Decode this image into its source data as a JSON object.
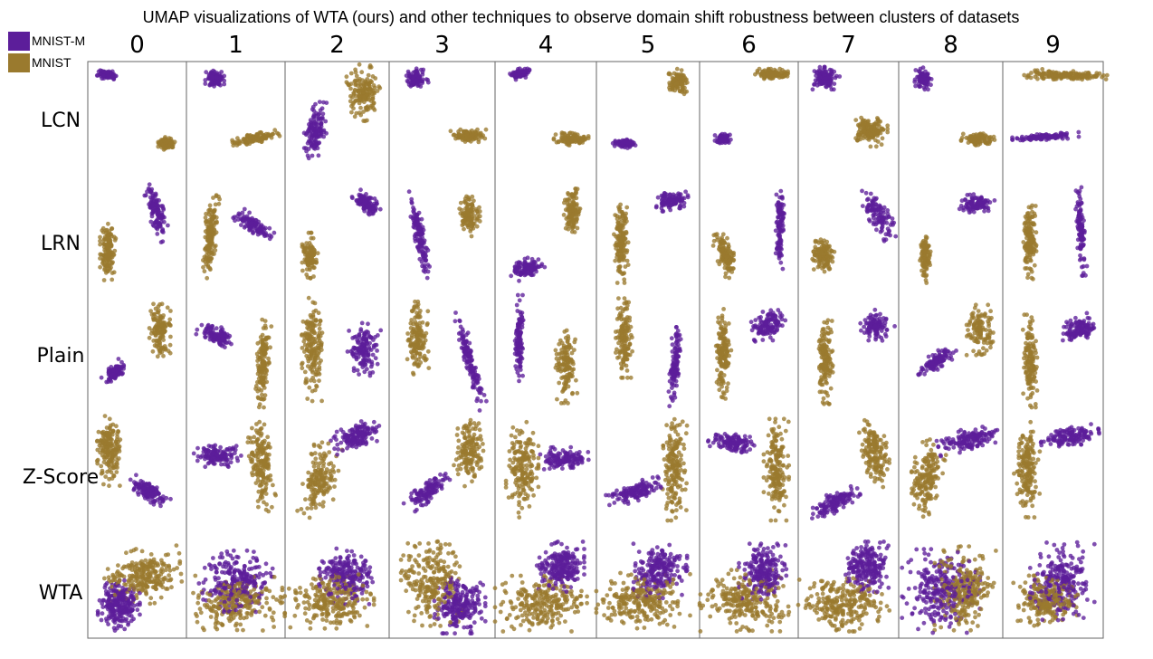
{
  "chart_data": {
    "type": "scatter",
    "title": "UMAP visualizations of WTA (ours) and other techniques to observe domain shift robustness between clusters of datasets",
    "columns": [
      "0",
      "1",
      "2",
      "3",
      "4",
      "5",
      "6",
      "7",
      "8",
      "9"
    ],
    "rows": [
      "LCN",
      "LRN",
      "Plain",
      "Z-Score",
      "WTA"
    ],
    "legend": {
      "placement": "top-left",
      "entries": [
        {
          "name": "MNIST-M",
          "color": "#5c1e9a"
        },
        {
          "name": "MNIST",
          "color": "#9a7a2e"
        }
      ]
    },
    "grid": false,
    "axes_visible": false,
    "panels": {
      "LCN": {
        "0": {
          "MNIST-M": {
            "cx": 0.18,
            "cy": 0.09,
            "w": 0.2,
            "h": 0.08,
            "rot": 10,
            "n": 90
          },
          "MNIST": {
            "cx": 0.82,
            "cy": 0.72,
            "w": 0.18,
            "h": 0.1,
            "rot": 0,
            "n": 90
          }
        },
        "1": {
          "MNIST-M": {
            "cx": 0.27,
            "cy": 0.12,
            "w": 0.18,
            "h": 0.15,
            "rot": 0,
            "n": 90
          },
          "MNIST": {
            "cx": 0.72,
            "cy": 0.67,
            "w": 0.45,
            "h": 0.08,
            "rot": -12,
            "n": 110
          }
        },
        "2": {
          "MNIST-M": {
            "cx": 0.28,
            "cy": 0.6,
            "w": 0.2,
            "h": 0.46,
            "rot": 8,
            "n": 130
          },
          "MNIST": {
            "cx": 0.77,
            "cy": 0.25,
            "w": 0.3,
            "h": 0.46,
            "rot": 0,
            "n": 160
          }
        },
        "3": {
          "MNIST-M": {
            "cx": 0.23,
            "cy": 0.12,
            "w": 0.2,
            "h": 0.15,
            "rot": -15,
            "n": 90
          },
          "MNIST": {
            "cx": 0.77,
            "cy": 0.65,
            "w": 0.32,
            "h": 0.1,
            "rot": 0,
            "n": 100
          }
        },
        "4": {
          "MNIST-M": {
            "cx": 0.22,
            "cy": 0.08,
            "w": 0.2,
            "h": 0.08,
            "rot": -15,
            "n": 80
          },
          "MNIST": {
            "cx": 0.77,
            "cy": 0.68,
            "w": 0.32,
            "h": 0.1,
            "rot": 0,
            "n": 100
          }
        },
        "5": {
          "MNIST-M": {
            "cx": 0.25,
            "cy": 0.72,
            "w": 0.22,
            "h": 0.08,
            "rot": 0,
            "n": 80
          },
          "MNIST": {
            "cx": 0.82,
            "cy": 0.15,
            "w": 0.18,
            "h": 0.2,
            "rot": 0,
            "n": 100
          }
        },
        "6": {
          "MNIST-M": {
            "cx": 0.22,
            "cy": 0.68,
            "w": 0.16,
            "h": 0.08,
            "rot": 0,
            "n": 80
          },
          "MNIST": {
            "cx": 0.75,
            "cy": 0.08,
            "w": 0.35,
            "h": 0.08,
            "rot": 0,
            "n": 110
          }
        },
        "7": {
          "MNIST-M": {
            "cx": 0.25,
            "cy": 0.12,
            "w": 0.28,
            "h": 0.18,
            "rot": 0,
            "n": 110
          },
          "MNIST": {
            "cx": 0.73,
            "cy": 0.6,
            "w": 0.33,
            "h": 0.26,
            "rot": 0,
            "n": 150
          }
        },
        "8": {
          "MNIST-M": {
            "cx": 0.22,
            "cy": 0.12,
            "w": 0.16,
            "h": 0.18,
            "rot": 0,
            "n": 90
          },
          "MNIST": {
            "cx": 0.78,
            "cy": 0.68,
            "w": 0.3,
            "h": 0.1,
            "rot": 0,
            "n": 100
          }
        },
        "9": {
          "MNIST-M": {
            "cx": 0.42,
            "cy": 0.66,
            "w": 0.62,
            "h": 0.05,
            "rot": -3,
            "n": 110
          },
          "MNIST": {
            "cx": 0.62,
            "cy": 0.09,
            "w": 0.8,
            "h": 0.08,
            "rot": 2,
            "n": 170
          }
        }
      },
      "LRN": {
        "0": {
          "MNIST-M": {
            "cx": 0.7,
            "cy": 0.28,
            "w": 0.16,
            "h": 0.52,
            "rot": -15,
            "n": 120
          },
          "MNIST": {
            "cx": 0.18,
            "cy": 0.65,
            "w": 0.15,
            "h": 0.45,
            "rot": 0,
            "n": 140
          }
        },
        "1": {
          "MNIST-M": {
            "cx": 0.7,
            "cy": 0.4,
            "w": 0.4,
            "h": 0.12,
            "rot": 35,
            "n": 110
          },
          "MNIST": {
            "cx": 0.22,
            "cy": 0.5,
            "w": 0.12,
            "h": 0.72,
            "rot": 5,
            "n": 150
          }
        },
        "2": {
          "MNIST-M": {
            "cx": 0.8,
            "cy": 0.2,
            "w": 0.28,
            "h": 0.14,
            "rot": 40,
            "n": 100
          },
          "MNIST": {
            "cx": 0.22,
            "cy": 0.68,
            "w": 0.14,
            "h": 0.36,
            "rot": 0,
            "n": 110
          }
        },
        "3": {
          "MNIST-M": {
            "cx": 0.27,
            "cy": 0.5,
            "w": 0.1,
            "h": 0.72,
            "rot": -12,
            "n": 130
          },
          "MNIST": {
            "cx": 0.78,
            "cy": 0.32,
            "w": 0.18,
            "h": 0.32,
            "rot": 0,
            "n": 110
          }
        },
        "4": {
          "MNIST-M": {
            "cx": 0.28,
            "cy": 0.8,
            "w": 0.35,
            "h": 0.15,
            "rot": -20,
            "n": 110
          },
          "MNIST": {
            "cx": 0.78,
            "cy": 0.28,
            "w": 0.15,
            "h": 0.4,
            "rot": 0,
            "n": 120
          }
        },
        "5": {
          "MNIST-M": {
            "cx": 0.75,
            "cy": 0.18,
            "w": 0.3,
            "h": 0.14,
            "rot": -10,
            "n": 100
          },
          "MNIST": {
            "cx": 0.22,
            "cy": 0.55,
            "w": 0.13,
            "h": 0.66,
            "rot": 0,
            "n": 150
          }
        },
        "6": {
          "MNIST-M": {
            "cx": 0.84,
            "cy": 0.4,
            "w": 0.08,
            "h": 0.7,
            "rot": 0,
            "n": 110
          },
          "MNIST": {
            "cx": 0.24,
            "cy": 0.68,
            "w": 0.17,
            "h": 0.36,
            "rot": -15,
            "n": 120
          }
        },
        "7": {
          "MNIST-M": {
            "cx": 0.82,
            "cy": 0.3,
            "w": 0.2,
            "h": 0.44,
            "rot": -25,
            "n": 110
          },
          "MNIST": {
            "cx": 0.24,
            "cy": 0.68,
            "w": 0.22,
            "h": 0.3,
            "rot": 0,
            "n": 120
          }
        },
        "8": {
          "MNIST-M": {
            "cx": 0.77,
            "cy": 0.2,
            "w": 0.32,
            "h": 0.14,
            "rot": -5,
            "n": 100
          },
          "MNIST": {
            "cx": 0.24,
            "cy": 0.7,
            "w": 0.1,
            "h": 0.4,
            "rot": 0,
            "n": 100
          }
        },
        "9": {
          "MNIST-M": {
            "cx": 0.8,
            "cy": 0.45,
            "w": 0.08,
            "h": 0.72,
            "rot": -3,
            "n": 120
          },
          "MNIST": {
            "cx": 0.25,
            "cy": 0.55,
            "w": 0.13,
            "h": 0.6,
            "rot": 0,
            "n": 140
          }
        }
      },
      "Plain": {
        "0": {
          "MNIST-M": {
            "cx": 0.25,
            "cy": 0.65,
            "w": 0.24,
            "h": 0.1,
            "rot": -45,
            "n": 120
          },
          "MNIST": {
            "cx": 0.75,
            "cy": 0.28,
            "w": 0.2,
            "h": 0.4,
            "rot": 0,
            "n": 130
          }
        },
        "1": {
          "MNIST-M": {
            "cx": 0.3,
            "cy": 0.33,
            "w": 0.4,
            "h": 0.14,
            "rot": 25,
            "n": 110
          },
          "MNIST": {
            "cx": 0.8,
            "cy": 0.55,
            "w": 0.12,
            "h": 0.7,
            "rot": 3,
            "n": 140
          }
        },
        "2": {
          "MNIST-M": {
            "cx": 0.78,
            "cy": 0.45,
            "w": 0.3,
            "h": 0.4,
            "rot": 0,
            "n": 140
          },
          "MNIST": {
            "cx": 0.25,
            "cy": 0.45,
            "w": 0.2,
            "h": 0.78,
            "rot": 0,
            "n": 170
          }
        },
        "3": {
          "MNIST-M": {
            "cx": 0.78,
            "cy": 0.55,
            "w": 0.1,
            "h": 0.76,
            "rot": -15,
            "n": 130
          },
          "MNIST": {
            "cx": 0.25,
            "cy": 0.35,
            "w": 0.2,
            "h": 0.55,
            "rot": 0,
            "n": 140
          }
        },
        "4": {
          "MNIST-M": {
            "cx": 0.22,
            "cy": 0.35,
            "w": 0.08,
            "h": 0.65,
            "rot": 0,
            "n": 110
          },
          "MNIST": {
            "cx": 0.72,
            "cy": 0.6,
            "w": 0.2,
            "h": 0.55,
            "rot": 0,
            "n": 140
          }
        },
        "5": {
          "MNIST-M": {
            "cx": 0.78,
            "cy": 0.6,
            "w": 0.1,
            "h": 0.6,
            "rot": 5,
            "n": 110
          },
          "MNIST": {
            "cx": 0.25,
            "cy": 0.35,
            "w": 0.15,
            "h": 0.6,
            "rot": 0,
            "n": 140
          }
        },
        "6": {
          "MNIST-M": {
            "cx": 0.7,
            "cy": 0.25,
            "w": 0.35,
            "h": 0.22,
            "rot": -35,
            "n": 120
          },
          "MNIST": {
            "cx": 0.22,
            "cy": 0.5,
            "w": 0.15,
            "h": 0.7,
            "rot": 0,
            "n": 150
          }
        },
        "7": {
          "MNIST-M": {
            "cx": 0.8,
            "cy": 0.25,
            "w": 0.28,
            "h": 0.22,
            "rot": -40,
            "n": 110
          },
          "MNIST": {
            "cx": 0.25,
            "cy": 0.55,
            "w": 0.15,
            "h": 0.65,
            "rot": 0,
            "n": 140
          }
        },
        "8": {
          "MNIST-M": {
            "cx": 0.35,
            "cy": 0.55,
            "w": 0.4,
            "h": 0.12,
            "rot": -35,
            "n": 110
          },
          "MNIST": {
            "cx": 0.8,
            "cy": 0.28,
            "w": 0.24,
            "h": 0.38,
            "rot": 0,
            "n": 120
          }
        },
        "9": {
          "MNIST-M": {
            "cx": 0.78,
            "cy": 0.28,
            "w": 0.35,
            "h": 0.2,
            "rot": -20,
            "n": 120
          },
          "MNIST": {
            "cx": 0.25,
            "cy": 0.55,
            "w": 0.14,
            "h": 0.7,
            "rot": 0,
            "n": 140
          }
        }
      },
      "Z-Score": {
        "0": {
          "MNIST-M": {
            "cx": 0.63,
            "cy": 0.65,
            "w": 0.42,
            "h": 0.14,
            "rot": 35,
            "n": 130
          },
          "MNIST": {
            "cx": 0.2,
            "cy": 0.28,
            "w": 0.24,
            "h": 0.55,
            "rot": 0,
            "n": 170
          }
        },
        "1": {
          "MNIST-M": {
            "cx": 0.3,
            "cy": 0.32,
            "w": 0.45,
            "h": 0.18,
            "rot": 0,
            "n": 120
          },
          "MNIST": {
            "cx": 0.78,
            "cy": 0.4,
            "w": 0.22,
            "h": 0.75,
            "rot": -5,
            "n": 170
          }
        },
        "2": {
          "MNIST-M": {
            "cx": 0.7,
            "cy": 0.15,
            "w": 0.45,
            "h": 0.2,
            "rot": -25,
            "n": 140
          },
          "MNIST": {
            "cx": 0.32,
            "cy": 0.55,
            "w": 0.3,
            "h": 0.6,
            "rot": 10,
            "n": 160
          }
        },
        "3": {
          "MNIST-M": {
            "cx": 0.35,
            "cy": 0.65,
            "w": 0.45,
            "h": 0.14,
            "rot": -40,
            "n": 120
          },
          "MNIST": {
            "cx": 0.78,
            "cy": 0.3,
            "w": 0.28,
            "h": 0.52,
            "rot": 0,
            "n": 150
          }
        },
        "4": {
          "MNIST-M": {
            "cx": 0.7,
            "cy": 0.35,
            "w": 0.45,
            "h": 0.18,
            "rot": 0,
            "n": 130
          },
          "MNIST": {
            "cx": 0.25,
            "cy": 0.45,
            "w": 0.3,
            "h": 0.75,
            "rot": 0,
            "n": 180
          }
        },
        "5": {
          "MNIST-M": {
            "cx": 0.35,
            "cy": 0.65,
            "w": 0.5,
            "h": 0.16,
            "rot": -15,
            "n": 130
          },
          "MNIST": {
            "cx": 0.78,
            "cy": 0.45,
            "w": 0.22,
            "h": 0.8,
            "rot": 0,
            "n": 180
          }
        },
        "6": {
          "MNIST-M": {
            "cx": 0.32,
            "cy": 0.2,
            "w": 0.45,
            "h": 0.16,
            "rot": 15,
            "n": 120
          },
          "MNIST": {
            "cx": 0.8,
            "cy": 0.45,
            "w": 0.24,
            "h": 0.8,
            "rot": 0,
            "n": 180
          }
        },
        "7": {
          "MNIST-M": {
            "cx": 0.35,
            "cy": 0.75,
            "w": 0.5,
            "h": 0.16,
            "rot": -25,
            "n": 130
          },
          "MNIST": {
            "cx": 0.78,
            "cy": 0.3,
            "w": 0.25,
            "h": 0.55,
            "rot": -10,
            "n": 160
          }
        },
        "8": {
          "MNIST-M": {
            "cx": 0.68,
            "cy": 0.18,
            "w": 0.55,
            "h": 0.18,
            "rot": -15,
            "n": 140
          },
          "MNIST": {
            "cx": 0.25,
            "cy": 0.5,
            "w": 0.28,
            "h": 0.65,
            "rot": 10,
            "n": 170
          }
        },
        "9": {
          "MNIST-M": {
            "cx": 0.68,
            "cy": 0.15,
            "w": 0.55,
            "h": 0.16,
            "rot": -10,
            "n": 140
          },
          "MNIST": {
            "cx": 0.22,
            "cy": 0.45,
            "w": 0.24,
            "h": 0.75,
            "rot": 0,
            "n": 180
          }
        }
      },
      "WTA": {
        "0": {
          "MNIST-M": {
            "cx": 0.3,
            "cy": 0.7,
            "w": 0.4,
            "h": 0.45,
            "rot": 0,
            "n": 240
          },
          "MNIST": {
            "cx": 0.55,
            "cy": 0.4,
            "w": 0.75,
            "h": 0.5,
            "rot": -5,
            "n": 240
          }
        },
        "1": {
          "MNIST-M": {
            "cx": 0.5,
            "cy": 0.45,
            "w": 0.7,
            "h": 0.55,
            "rot": 0,
            "n": 240
          },
          "MNIST": {
            "cx": 0.52,
            "cy": 0.68,
            "w": 0.85,
            "h": 0.5,
            "rot": 0,
            "n": 240
          }
        },
        "2": {
          "MNIST-M": {
            "cx": 0.6,
            "cy": 0.4,
            "w": 0.5,
            "h": 0.5,
            "rot": 0,
            "n": 220
          },
          "MNIST": {
            "cx": 0.42,
            "cy": 0.65,
            "w": 0.8,
            "h": 0.5,
            "rot": 0,
            "n": 240
          }
        },
        "3": {
          "MNIST-M": {
            "cx": 0.68,
            "cy": 0.7,
            "w": 0.45,
            "h": 0.5,
            "rot": 0,
            "n": 230
          },
          "MNIST": {
            "cx": 0.4,
            "cy": 0.45,
            "w": 0.55,
            "h": 0.8,
            "rot": 0,
            "n": 240
          }
        },
        "4": {
          "MNIST-M": {
            "cx": 0.65,
            "cy": 0.3,
            "w": 0.45,
            "h": 0.45,
            "rot": 0,
            "n": 220
          },
          "MNIST": {
            "cx": 0.45,
            "cy": 0.68,
            "w": 0.85,
            "h": 0.5,
            "rot": 0,
            "n": 240
          }
        },
        "5": {
          "MNIST-M": {
            "cx": 0.62,
            "cy": 0.35,
            "w": 0.5,
            "h": 0.5,
            "rot": 0,
            "n": 220
          },
          "MNIST": {
            "cx": 0.45,
            "cy": 0.65,
            "w": 0.85,
            "h": 0.5,
            "rot": 0,
            "n": 240
          }
        },
        "6": {
          "MNIST-M": {
            "cx": 0.65,
            "cy": 0.35,
            "w": 0.45,
            "h": 0.5,
            "rot": 0,
            "n": 220
          },
          "MNIST": {
            "cx": 0.45,
            "cy": 0.65,
            "w": 0.85,
            "h": 0.55,
            "rot": 0,
            "n": 250
          }
        },
        "7": {
          "MNIST-M": {
            "cx": 0.7,
            "cy": 0.3,
            "w": 0.4,
            "h": 0.45,
            "rot": 0,
            "n": 210
          },
          "MNIST": {
            "cx": 0.45,
            "cy": 0.68,
            "w": 0.85,
            "h": 0.5,
            "rot": 0,
            "n": 250
          }
        },
        "8": {
          "MNIST-M": {
            "cx": 0.4,
            "cy": 0.55,
            "w": 0.7,
            "h": 0.75,
            "rot": 0,
            "n": 260
          },
          "MNIST": {
            "cx": 0.65,
            "cy": 0.55,
            "w": 0.55,
            "h": 0.8,
            "rot": 0,
            "n": 240
          }
        },
        "9": {
          "MNIST-M": {
            "cx": 0.6,
            "cy": 0.45,
            "w": 0.6,
            "h": 0.7,
            "rot": 0,
            "n": 240
          },
          "MNIST": {
            "cx": 0.42,
            "cy": 0.65,
            "w": 0.6,
            "h": 0.45,
            "rot": 0,
            "n": 220
          }
        }
      }
    }
  }
}
